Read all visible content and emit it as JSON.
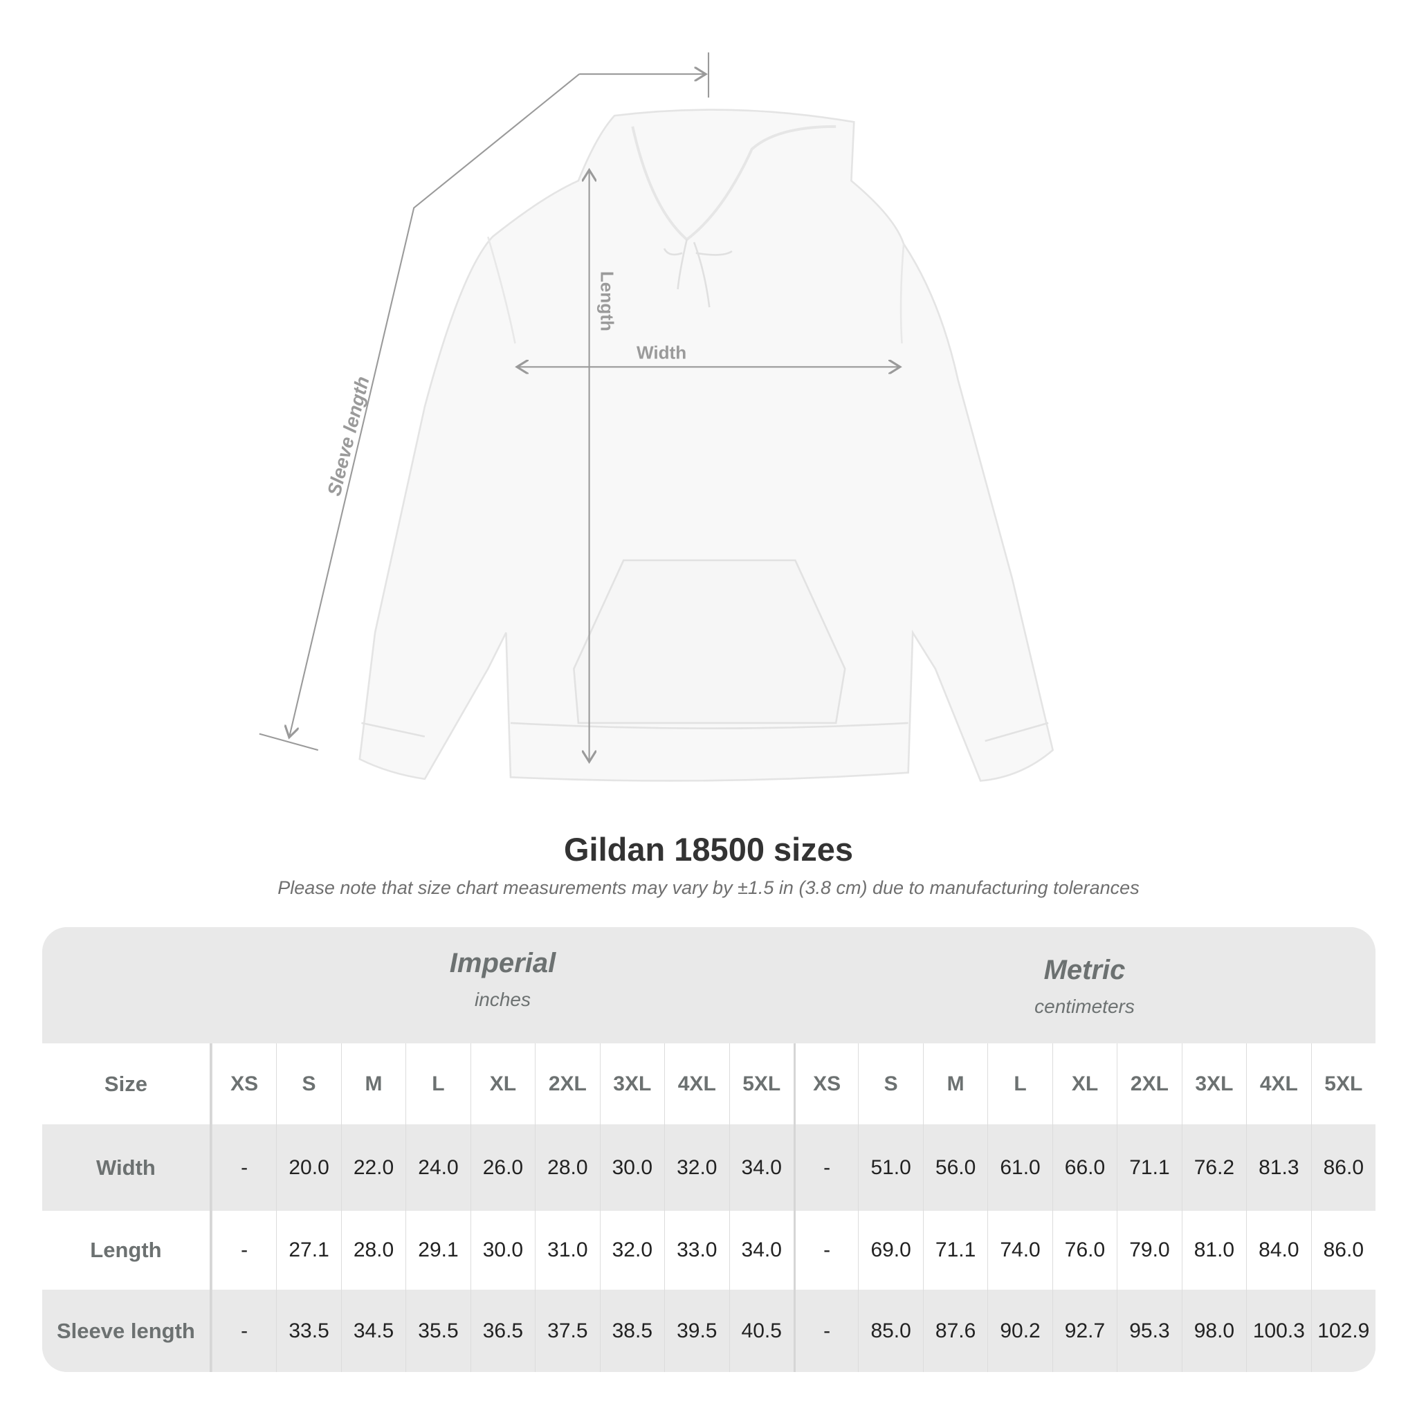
{
  "diagram": {
    "labels": {
      "sleeve": "Sleeve length",
      "length": "Length",
      "width": "Width"
    },
    "garment_color": "#f8f8f8",
    "line_color": "#9a9a9a"
  },
  "title": "Gildan 18500 sizes",
  "subtitle": "Please note that size chart measurements may vary by ±1.5 in (3.8 cm) due to manufacturing tolerances",
  "table": {
    "imperial": {
      "name": "Imperial",
      "unit": "inches"
    },
    "metric": {
      "name": "Metric",
      "unit": "centimeters"
    },
    "size_label": "Size",
    "sizes": [
      "XS",
      "S",
      "M",
      "L",
      "XL",
      "2XL",
      "3XL",
      "4XL",
      "5XL"
    ],
    "rows": [
      {
        "label": "Width",
        "imperial": [
          "-",
          "20.0",
          "22.0",
          "24.0",
          "26.0",
          "28.0",
          "30.0",
          "32.0",
          "34.0"
        ],
        "metric": [
          "-",
          "51.0",
          "56.0",
          "61.0",
          "66.0",
          "71.1",
          "76.2",
          "81.3",
          "86.0"
        ]
      },
      {
        "label": "Length",
        "imperial": [
          "-",
          "27.1",
          "28.0",
          "29.1",
          "30.0",
          "31.0",
          "32.0",
          "33.0",
          "34.0"
        ],
        "metric": [
          "-",
          "69.0",
          "71.1",
          "74.0",
          "76.0",
          "79.0",
          "81.0",
          "84.0",
          "86.0"
        ]
      },
      {
        "label": "Sleeve length",
        "imperial": [
          "-",
          "33.5",
          "34.5",
          "35.5",
          "36.5",
          "37.5",
          "38.5",
          "39.5",
          "40.5"
        ],
        "metric": [
          "-",
          "85.0",
          "87.6",
          "90.2",
          "92.7",
          "95.3",
          "98.0",
          "100.3",
          "102.9"
        ]
      }
    ]
  }
}
